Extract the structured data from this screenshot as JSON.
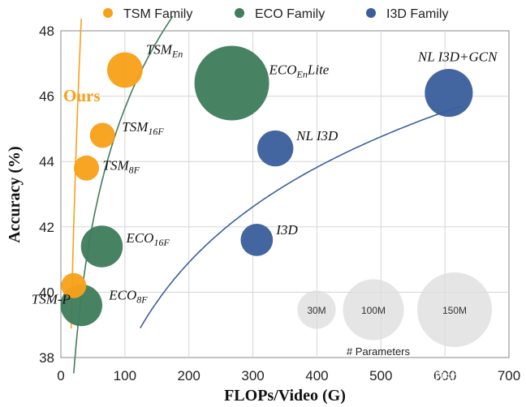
{
  "chart_data": {
    "type": "scatter",
    "xlabel": "FLOPs/Video (G)",
    "ylabel": "Accuracy (%)",
    "xlim": [
      0,
      700
    ],
    "ylim": [
      38,
      48
    ],
    "xticks": [
      0,
      100,
      200,
      300,
      400,
      500,
      600,
      700
    ],
    "yticks": [
      38,
      40,
      42,
      44,
      46,
      48
    ],
    "legend": [
      {
        "name": "TSM Family",
        "color": "#f7a11a"
      },
      {
        "name": "ECO Family",
        "color": "#3f7d5c"
      },
      {
        "name": "I3D Family",
        "color": "#3b5f9c"
      }
    ],
    "series": [
      {
        "name": "TSM Family",
        "color": "#f7a11a",
        "points": [
          {
            "label": "TSM-P",
            "x": 20,
            "y": 40.2,
            "params": 17
          },
          {
            "label": "TSM",
            "sub": "8F",
            "x": 40,
            "y": 43.8,
            "params": 17
          },
          {
            "label": "TSM",
            "sub": "16F",
            "x": 65,
            "y": 44.8,
            "params": 17
          },
          {
            "label": "TSM",
            "sub": "En",
            "x": 100,
            "y": 46.8,
            "params": 34
          }
        ]
      },
      {
        "name": "ECO Family",
        "color": "#3f7d5c",
        "points": [
          {
            "label": "ECO",
            "sub": "8F",
            "x": 32,
            "y": 39.6,
            "params": 47
          },
          {
            "label": "ECO",
            "sub": "16F",
            "x": 64,
            "y": 41.4,
            "params": 47
          },
          {
            "label": "ECO",
            "sub": "En",
            "tail": "Lite",
            "x": 267,
            "y": 46.4,
            "params": 150
          }
        ]
      },
      {
        "name": "I3D Family",
        "color": "#3b5f9c",
        "points": [
          {
            "label": "I3D",
            "x": 306,
            "y": 41.6,
            "params": 28
          },
          {
            "label": "NL I3D",
            "x": 335,
            "y": 44.4,
            "params": 35
          },
          {
            "label": "NL I3D+GCN",
            "x": 606,
            "y": 46.1,
            "params": 62
          }
        ]
      }
    ],
    "callout": {
      "text": "Ours",
      "color": "#f7a11a"
    },
    "size_legend": {
      "title": "# Parameters",
      "items": [
        {
          "label": "30M",
          "params": 30
        },
        {
          "label": "100M",
          "params": 100
        },
        {
          "label": "150M",
          "params": 150
        }
      ]
    }
  },
  "watermark": "知乎 @Fisher Yu"
}
